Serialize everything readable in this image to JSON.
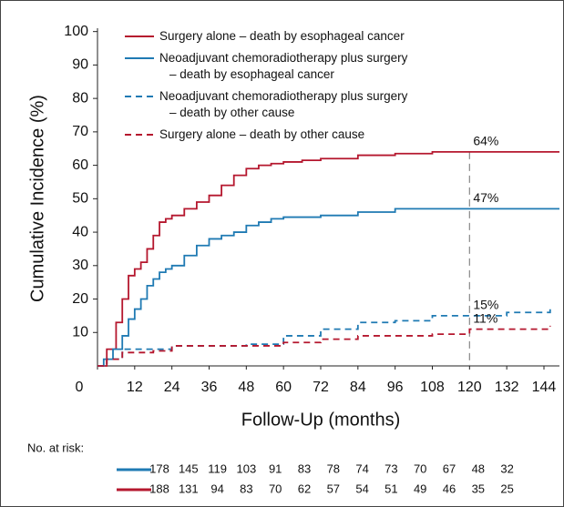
{
  "chart_data": {
    "type": "step",
    "xlabel": "Follow-Up (months)",
    "ylabel": "Cumulative Incidence (%)",
    "xlim": [
      0,
      149
    ],
    "ylim": [
      0,
      101
    ],
    "xticks": [
      0,
      12,
      24,
      36,
      48,
      60,
      72,
      84,
      96,
      108,
      120,
      132,
      144
    ],
    "yticks": [
      10,
      20,
      30,
      40,
      50,
      60,
      70,
      80,
      90,
      100
    ],
    "reference_x": 120,
    "series": [
      {
        "name": "Surgery alone – death by esophageal cancer",
        "color": "#b5172e",
        "dash": false,
        "x": [
          0,
          3,
          6,
          8,
          10,
          12,
          14,
          16,
          18,
          20,
          22,
          24,
          28,
          32,
          36,
          40,
          44,
          48,
          52,
          56,
          60,
          66,
          72,
          84,
          96,
          108,
          149
        ],
        "values": [
          0,
          5,
          13,
          20,
          27,
          29,
          31,
          35,
          39,
          43,
          44,
          45,
          47,
          49,
          51,
          54,
          57,
          59,
          60,
          60.5,
          61,
          61.5,
          62,
          63,
          63.5,
          64,
          64
        ]
      },
      {
        "name": "Neoadjuvant chemoradiotherapy plus surgery\n– death by esophageal cancer",
        "color": "#1f7ab3",
        "dash": false,
        "x": [
          0,
          2,
          5,
          8,
          10,
          12,
          14,
          16,
          18,
          20,
          22,
          24,
          28,
          32,
          36,
          40,
          44,
          48,
          52,
          56,
          60,
          72,
          84,
          96,
          149
        ],
        "values": [
          0,
          2,
          5,
          9,
          14,
          17,
          20,
          24,
          26,
          28,
          29,
          30,
          33,
          36,
          38,
          39,
          40,
          42,
          43,
          44,
          44.5,
          45,
          46,
          47,
          47
        ]
      },
      {
        "name": "Neoadjuvant chemoradiotherapy plus surgery\n– death by other cause",
        "color": "#1f7ab3",
        "dash": true,
        "x": [
          0,
          3,
          8,
          18,
          24,
          48,
          60,
          72,
          84,
          96,
          108,
          132,
          146
        ],
        "values": [
          0,
          2,
          5,
          5,
          6,
          6.5,
          9,
          11,
          13,
          13.5,
          15,
          16,
          17.5
        ]
      },
      {
        "name": "Surgery alone – death by other cause",
        "color": "#b5172e",
        "dash": true,
        "x": [
          0,
          3,
          8,
          18,
          24,
          48,
          60,
          72,
          84,
          108,
          120,
          146
        ],
        "values": [
          0,
          2,
          4,
          4.5,
          6,
          6,
          7,
          8,
          9,
          9.5,
          11,
          12
        ]
      }
    ],
    "annotations": [
      {
        "text": "64%",
        "x": 120,
        "y": 64
      },
      {
        "text": "47%",
        "x": 120,
        "y": 47
      },
      {
        "text": "15%",
        "x": 120,
        "y": 15
      },
      {
        "text": "11%",
        "x": 120,
        "y": 11
      }
    ],
    "risk_table": {
      "title": "No. at risk:",
      "rows": [
        {
          "color": "#1f7ab3",
          "values": [
            178,
            145,
            119,
            103,
            91,
            83,
            78,
            74,
            73,
            70,
            67,
            48,
            32
          ]
        },
        {
          "color": "#b5172e",
          "values": [
            188,
            131,
            94,
            83,
            70,
            62,
            57,
            54,
            51,
            49,
            46,
            35,
            25
          ]
        }
      ]
    }
  }
}
